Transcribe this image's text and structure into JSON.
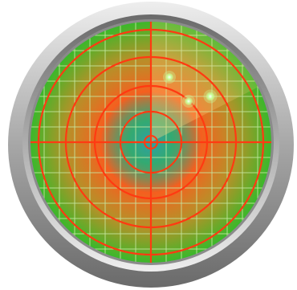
{
  "radar": {
    "icon": "radar-scope-icon",
    "colors": {
      "bezel_light": "#eeeeee",
      "bezel_mid": "#a7a7a7",
      "bezel_dark": "#6a6a6a",
      "screen_green": "#3bb82a",
      "grid_line": "#c6e8a3",
      "ring_line": "#ff3a12",
      "heat_core": "#2d9eab",
      "heat_mid": "#ff5a1e",
      "heat_outer": "#ff7a28",
      "sweep": "#ffd27a",
      "blip": "#c9ff9a"
    },
    "blips": [
      {
        "name": "blip-1"
      },
      {
        "name": "blip-2"
      },
      {
        "name": "blip-3"
      }
    ]
  }
}
